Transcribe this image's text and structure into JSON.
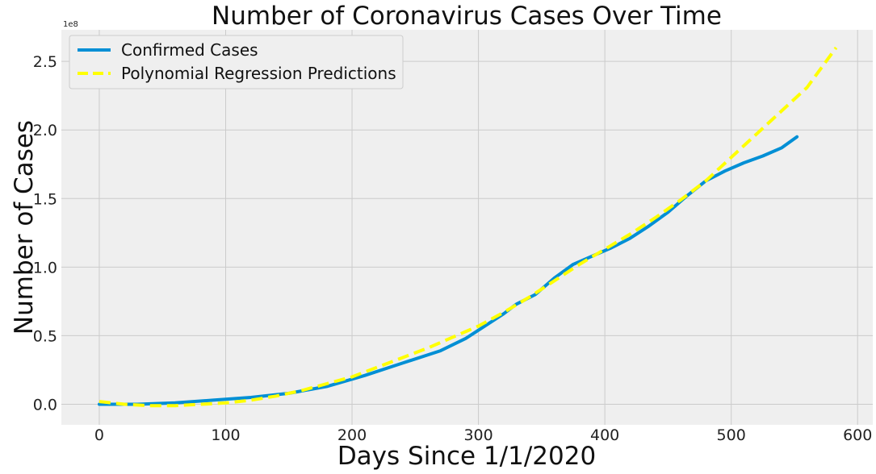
{
  "chart_data": {
    "type": "line",
    "title": "Number of Coronavirus Cases Over Time",
    "xlabel": "Days Since 1/1/2020",
    "ylabel": "Number of Cases",
    "y_offset_label": "1e8",
    "xlim": [
      -30,
      612
    ],
    "ylim": [
      -0.15,
      2.73
    ],
    "y_unit_multiplier": 100000000,
    "x_ticks": [
      0,
      100,
      200,
      300,
      400,
      500,
      600
    ],
    "x_tick_labels": [
      "0",
      "100",
      "200",
      "300",
      "400",
      "500",
      "600"
    ],
    "y_ticks": [
      0.0,
      0.5,
      1.0,
      1.5,
      2.0,
      2.5
    ],
    "y_tick_labels": [
      "0.0",
      "0.5",
      "1.0",
      "1.5",
      "2.0",
      "2.5"
    ],
    "grid": true,
    "legend_position": "top-left",
    "background_color": "#efefef",
    "series": [
      {
        "name": "Confirmed Cases",
        "style": "solid",
        "color": "#008fd5",
        "x": [
          0,
          30,
          60,
          90,
          120,
          150,
          180,
          210,
          240,
          270,
          290,
          310,
          320,
          330,
          345,
          360,
          375,
          390,
          405,
          420,
          435,
          450,
          465,
          480,
          495,
          510,
          525,
          540,
          552
        ],
        "y": [
          0.0,
          0.0,
          0.01,
          0.03,
          0.05,
          0.08,
          0.13,
          0.21,
          0.3,
          0.39,
          0.48,
          0.6,
          0.66,
          0.73,
          0.8,
          0.92,
          1.02,
          1.08,
          1.14,
          1.21,
          1.3,
          1.4,
          1.52,
          1.63,
          1.7,
          1.76,
          1.81,
          1.87,
          1.95
        ]
      },
      {
        "name": "Polynomial Regression Predictions",
        "style": "dashed",
        "color": "#ffff00",
        "x": [
          0,
          20,
          40,
          60,
          80,
          100,
          120,
          140,
          160,
          180,
          200,
          220,
          240,
          260,
          280,
          300,
          320,
          340,
          360,
          380,
          400,
          420,
          440,
          460,
          480,
          500,
          520,
          540,
          560,
          583
        ],
        "y": [
          0.02,
          0.0,
          -0.01,
          -0.01,
          0.0,
          0.01,
          0.03,
          0.06,
          0.1,
          0.15,
          0.2,
          0.27,
          0.34,
          0.41,
          0.49,
          0.57,
          0.67,
          0.78,
          0.9,
          1.02,
          1.13,
          1.24,
          1.36,
          1.49,
          1.63,
          1.8,
          1.97,
          2.14,
          2.31,
          2.6
        ]
      }
    ]
  }
}
